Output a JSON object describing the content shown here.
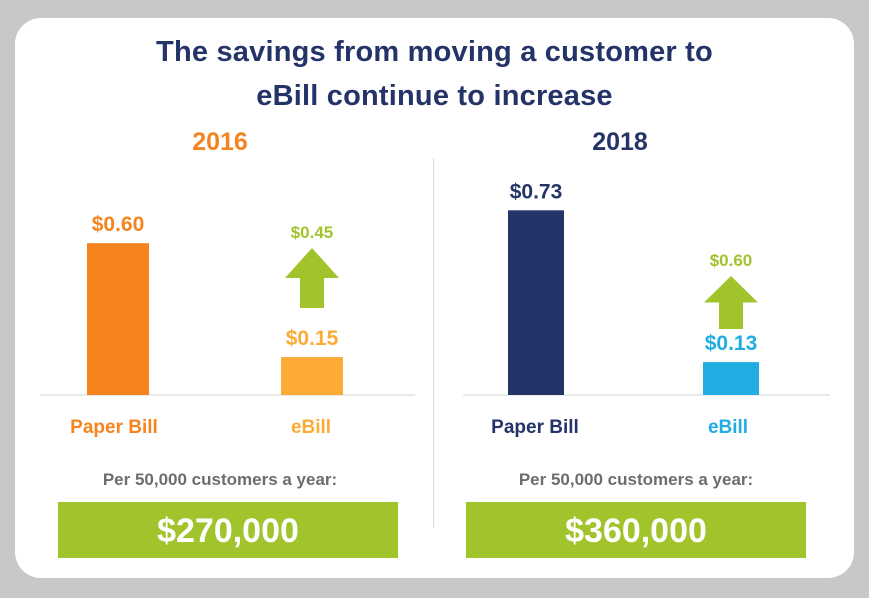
{
  "title_line1": "The savings from moving a customer to",
  "title_line2": "eBill continue to increase",
  "colors": {
    "navy": "#243469",
    "orange": "#f5841f",
    "light_orange": "#fbab36",
    "green": "#a1c42d",
    "blue": "#21ace2",
    "gray_text": "#6d6d6d"
  },
  "chart_data": [
    {
      "type": "bar",
      "title": "2016",
      "categories": [
        "Paper Bill",
        "eBill"
      ],
      "values": [
        0.6,
        0.15
      ],
      "value_labels": [
        "$0.60",
        "$0.15"
      ],
      "savings_label": "$0.45",
      "savings_value": 0.45,
      "bar_colors": [
        "#f5841f",
        "#fbab36"
      ],
      "category_colors": [
        "#f5841f",
        "#fbab36"
      ],
      "ylim": [
        0,
        0.8
      ],
      "caption": "Per 50,000 customers a year:",
      "total": "$270,000"
    },
    {
      "type": "bar",
      "title": "2018",
      "categories": [
        "Paper Bill",
        "eBill"
      ],
      "values": [
        0.73,
        0.13
      ],
      "value_labels": [
        "$0.73",
        "$0.13"
      ],
      "savings_label": "$0.60",
      "savings_value": 0.6,
      "bar_colors": [
        "#243469",
        "#21ace2"
      ],
      "category_colors": [
        "#243469",
        "#21ace2"
      ],
      "ylim": [
        0,
        0.8
      ],
      "caption": "Per 50,000 customers a year:",
      "total": "$360,000"
    }
  ]
}
